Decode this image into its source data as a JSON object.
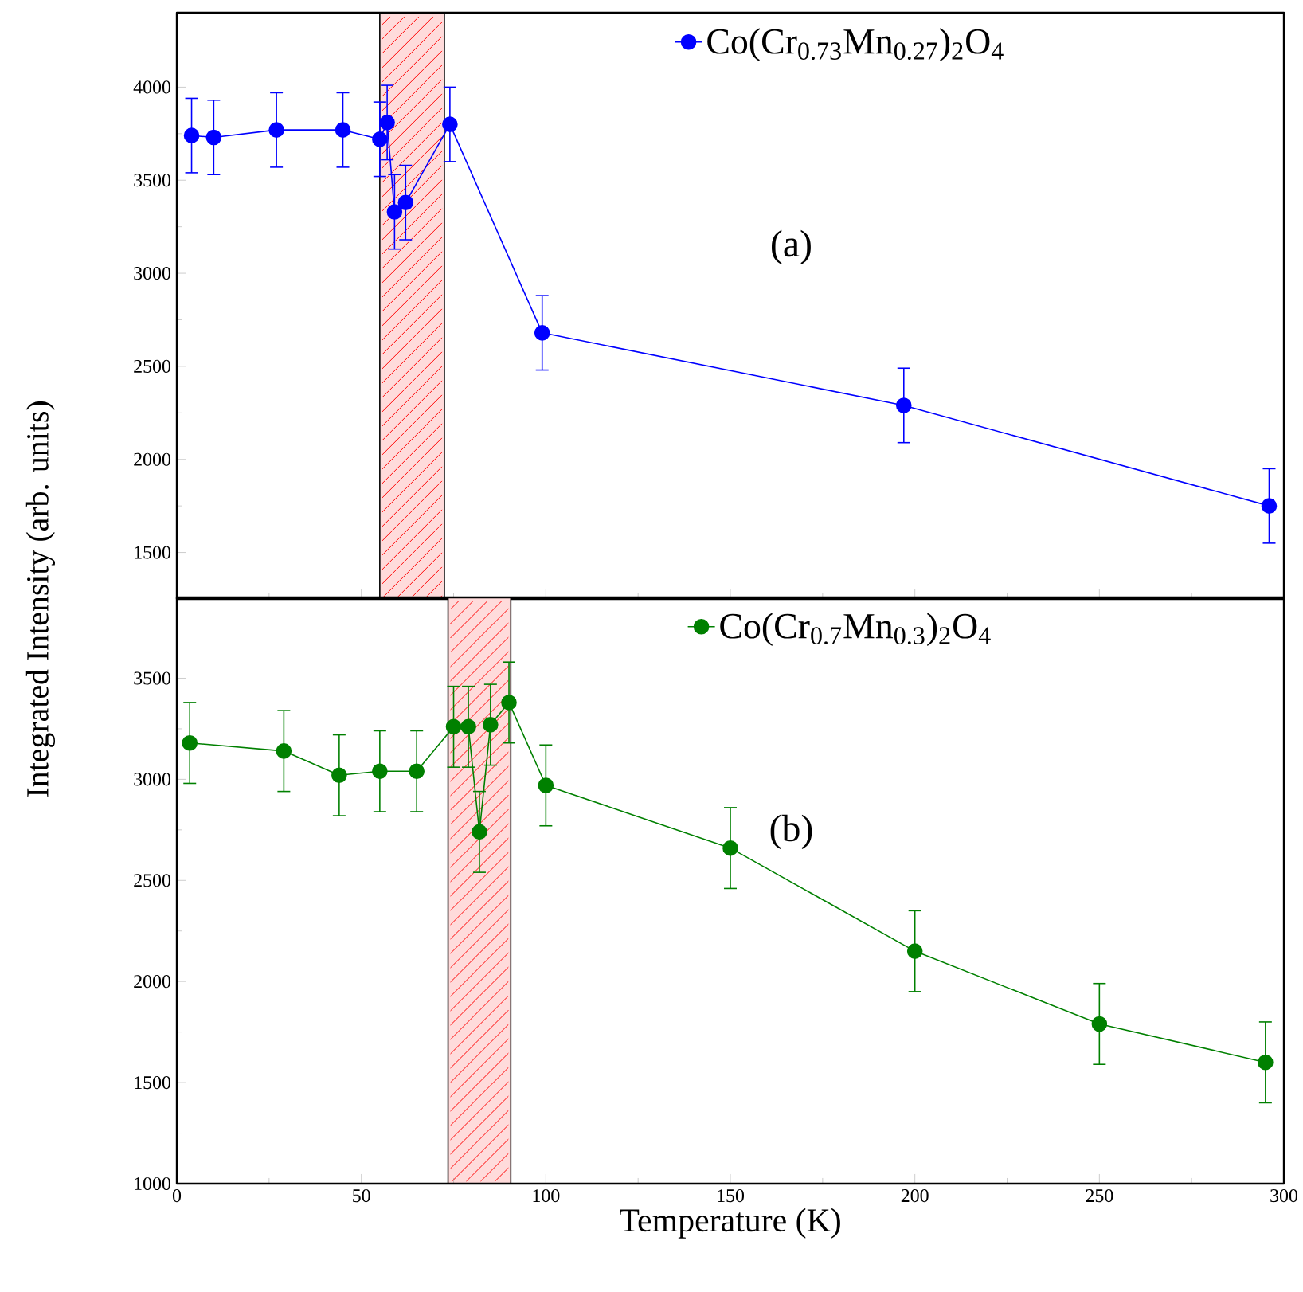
{
  "chart_data": [
    {
      "type": "line",
      "ylabel": "Integrated Intensity (arb. units)",
      "annotations": [
        "(a)"
      ],
      "legend": "top",
      "marker": "circle",
      "tick_labels": "y",
      "xlim": [
        0,
        300
      ],
      "xticks": [
        0,
        50,
        100,
        150,
        200,
        250,
        300
      ],
      "ylim": [
        1250,
        4400
      ],
      "yticks": [
        1500,
        2000,
        2500,
        3000,
        3500,
        4000
      ],
      "bands": [
        {
          "axis": "x",
          "from": 55,
          "to": 72.5,
          "color": "#ffdbdb"
        }
      ],
      "series": [
        {
          "name": "Co(Cr$_{0.73}$Mn$_{0.27}$)$_{2}$O$_{4}$",
          "color": "#0000ff",
          "x": [
            4,
            10,
            27,
            45,
            55,
            57,
            59,
            62,
            74,
            99,
            197,
            296
          ],
          "values": [
            3740,
            3730,
            3770,
            3770,
            3720,
            3810,
            3330,
            3380,
            3800,
            2680,
            2290,
            1750
          ],
          "errors": [
            200,
            200,
            200,
            200,
            200,
            200,
            200,
            200,
            200,
            200,
            200,
            200
          ]
        }
      ]
    },
    {
      "type": "line",
      "xlabel": "Temperature (K)",
      "annotations": [
        "(b)"
      ],
      "legend": "top",
      "marker": "circle",
      "xlim": [
        0,
        300
      ],
      "xticks": [
        0,
        50,
        100,
        150,
        200,
        250,
        300
      ],
      "ylim": [
        1000,
        3900
      ],
      "yticks": [
        1000,
        1500,
        2000,
        2500,
        3000,
        3500
      ],
      "bands": [
        {
          "axis": "x",
          "from": 73.5,
          "to": 90.5,
          "color": "#ffdbdb"
        }
      ],
      "series": [
        {
          "name": "Co(Cr$_{0.7}$Mn$_{0.3}$)$_{2}$O$_{4}$",
          "color": "#008000",
          "x": [
            3.5,
            29,
            44,
            55,
            65,
            75,
            79,
            82,
            85,
            90,
            100,
            150,
            200,
            250,
            295
          ],
          "values": [
            3180,
            3140,
            3020,
            3040,
            3040,
            3260,
            3260,
            2740,
            3270,
            3380,
            2970,
            2660,
            2150,
            1790,
            1600
          ],
          "errors": [
            200,
            200,
            200,
            200,
            200,
            200,
            200,
            200,
            200,
            200,
            200,
            200,
            200,
            200,
            200
          ]
        }
      ]
    }
  ]
}
